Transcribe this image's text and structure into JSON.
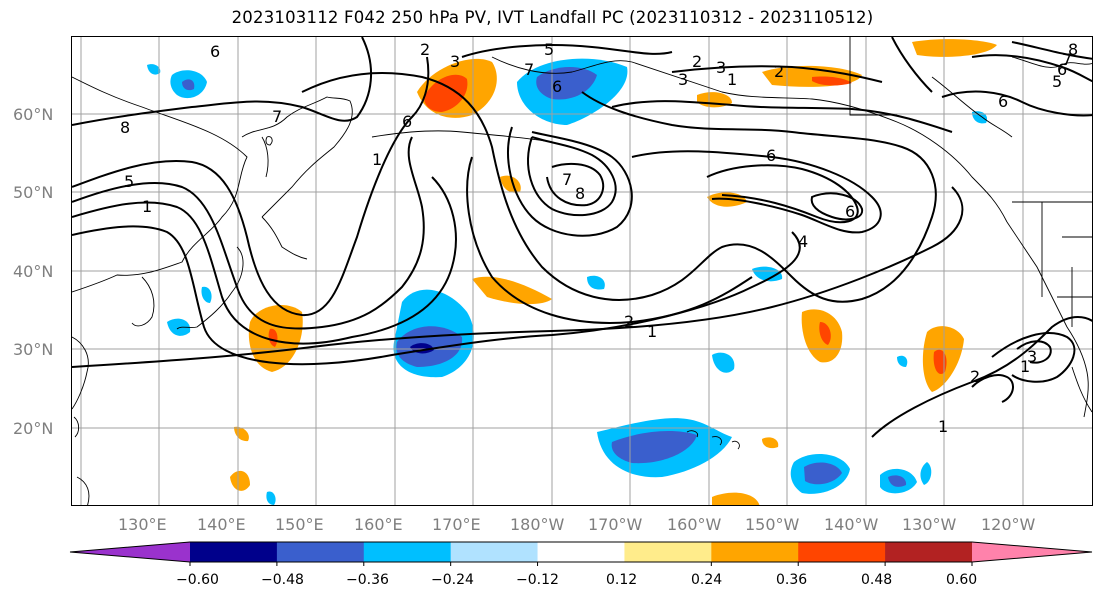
{
  "title": "2023103112 F042 250 hPa PV, IVT Landfall PC (2023110312 - 2023110512)",
  "lat_labels": [
    "60°N",
    "50°N",
    "40°N",
    "30°N",
    "20°N"
  ],
  "lon_labels": [
    "130°E",
    "140°E",
    "150°E",
    "160°E",
    "170°E",
    "180°W",
    "170°W",
    "160°W",
    "150°W",
    "140°W",
    "130°W",
    "120°W"
  ],
  "contour_labels": [
    "6",
    "2",
    "3",
    "5",
    "7",
    "6",
    "8",
    "7",
    "5",
    "1",
    "6",
    "1",
    "7",
    "8",
    "6",
    "6",
    "4",
    "2",
    "1",
    "2",
    "3",
    "2",
    "1",
    "3",
    "1",
    "2",
    "3",
    "5",
    "6",
    "6",
    "8",
    "1",
    "7"
  ],
  "colorbar": {
    "tick_labels": [
      "−0.60",
      "−0.48",
      "−0.36",
      "−0.24",
      "−0.12",
      "0.12",
      "0.24",
      "0.36",
      "0.48",
      "0.60"
    ],
    "colors": [
      "#9a32cd",
      "#00008b",
      "#3a5fcd",
      "#00bfff",
      "#b0e2ff",
      "#ffffff",
      "#ffec8b",
      "#ffa500",
      "#ff4500",
      "#b22222",
      "#ff82ab"
    ]
  },
  "colors": {
    "coast": "#000000",
    "grid": "#a0a0a0",
    "contour": "#000000",
    "label_gray": "#7f7f7f"
  }
}
